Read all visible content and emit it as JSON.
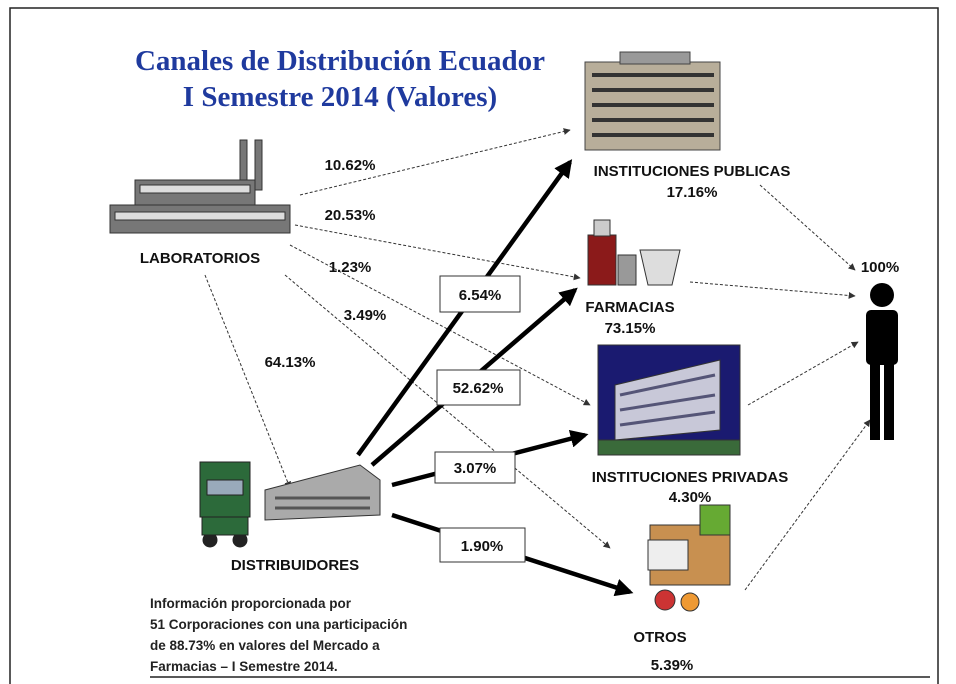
{
  "title": [
    "Canales de Distribución Ecuador",
    "I Semestre 2014 (Valores)"
  ],
  "nodes": {
    "laboratorios": {
      "label": "LABORATORIOS"
    },
    "distribuidores": {
      "label": "DISTRIBUIDORES"
    },
    "instituciones_publicas": {
      "label": "INSTITUCIONES PUBLICAS",
      "share": "17.16%"
    },
    "farmacias": {
      "label": "FARMACIAS",
      "share": "73.15%"
    },
    "instituciones_privadas": {
      "label": "INSTITUCIONES PRIVADAS",
      "share": "4.30%"
    },
    "otros": {
      "label": "OTROS",
      "share": "5.39%"
    },
    "consumidor": {
      "share": "100%"
    }
  },
  "edges": {
    "laboratorios_publicas": "10.62%",
    "laboratorios_farmacias": "20.53%",
    "laboratorios_privadas": "1.23%",
    "laboratorios_otros": "3.49%",
    "laboratorios_distribuidores": "64.13%",
    "distribuidores_publicas": "6.54%",
    "distribuidores_farmacias": "52.62%",
    "distribuidores_privadas": "3.07%",
    "distribuidores_otros": "1.90%"
  },
  "footnote": [
    "Información proporcionada por",
    "51 Corporaciones con una participación",
    "de 88.73% en valores del Mercado a",
    "Farmacias – I Semestre 2014."
  ]
}
